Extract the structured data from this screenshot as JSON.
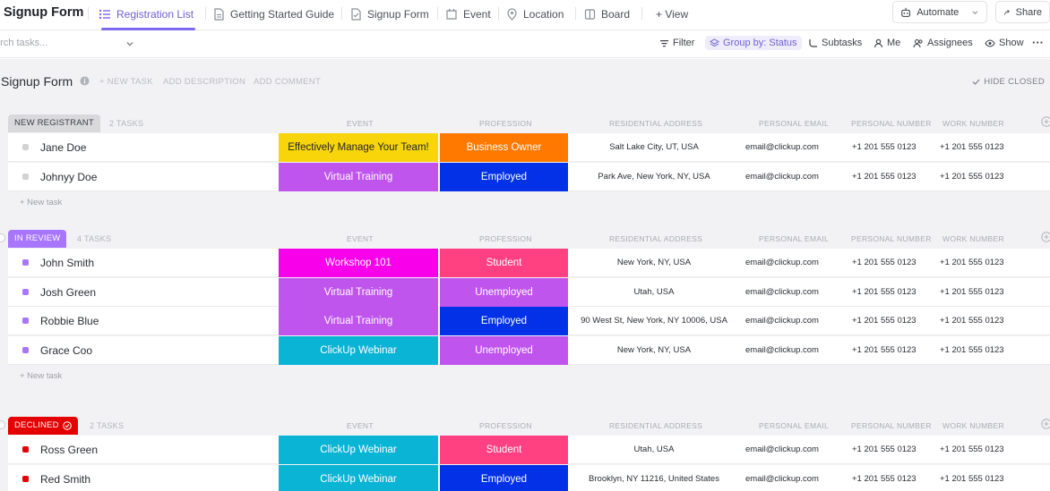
{
  "top": {
    "title": "Signup Form",
    "tabs": [
      {
        "label": "Registration List",
        "icon": "list-icon"
      },
      {
        "label": "Getting Started Guide",
        "icon": "doc-icon"
      },
      {
        "label": "Signup Form",
        "icon": "form-icon"
      },
      {
        "label": "Event",
        "icon": "event-icon"
      },
      {
        "label": "Location",
        "icon": "location-icon"
      },
      {
        "label": "Board",
        "icon": "board-icon"
      },
      {
        "label": "+ View",
        "icon": "plus-icon"
      }
    ],
    "automate": "Automate",
    "share": "Share"
  },
  "toolbar": {
    "search_placeholder": "arch tasks...",
    "filter": "Filter",
    "group_by": "Group by: Status",
    "subtasks": "Subtasks",
    "me": "Me",
    "assignees": "Assignees",
    "show": "Show"
  },
  "list": {
    "title": "Signup Form",
    "new_task": "+ NEW TASK",
    "add_description": "ADD DESCRIPTION",
    "add_comment": "ADD COMMENT",
    "hide_closed": "HIDE CLOSED",
    "add_task_label": "+ New task"
  },
  "columns": {
    "event": "EVENT",
    "profession": "PROFESSION",
    "address": "RESIDENTIAL ADDRESS",
    "email": "PERSONAL EMAIL",
    "personal_number": "PERSONAL NUMBER",
    "work_number": "WORK NUMBER"
  },
  "groups": [
    {
      "status": "NEW REGISTRANT",
      "count": "2 TASKS",
      "badge_bg": "#d9d9dc",
      "badge_fg": "#3c3f46",
      "square": "#d3d3d6",
      "tasks": [
        {
          "name": "Jane Doe",
          "event": "Effectively Manage Your Team!",
          "event_bg": "#f8d50b",
          "event_fg": "#1f2128",
          "profession": "Business Owner",
          "profession_bg": "#ff7800",
          "address": "Salt Lake City, UT, USA",
          "email": "email@clickup.com",
          "personal": "+1 201 555 0123",
          "work": "+1 201 555 0123"
        },
        {
          "name": "Johnyy Doe",
          "event": "Virtual Training",
          "event_bg": "#bf55ec",
          "event_fg": "#ffffff",
          "profession": "Employed",
          "profession_bg": "#0231e8",
          "address": "Park Ave, New York, NY, USA",
          "email": "email@clickup.com",
          "personal": "+1 201 555 0123",
          "work": "+1 201 555 0123"
        }
      ]
    },
    {
      "status": "IN REVIEW",
      "count": "4 TASKS",
      "badge_bg": "#a875ff",
      "badge_fg": "#ffffff",
      "square": "#a875ff",
      "tasks": [
        {
          "name": "John Smith",
          "event": "Workshop 101",
          "event_bg": "#f900ea",
          "event_fg": "#ffffff",
          "profession": "Student",
          "profession_bg": "#ff4081",
          "address": "New York, NY, USA",
          "email": "email@clickup.com",
          "personal": "+1 201 555 0123",
          "work": "+1 201 555 0123"
        },
        {
          "name": "Josh Green",
          "event": "Virtual Training",
          "event_bg": "#bf55ec",
          "event_fg": "#ffffff",
          "profession": "Unemployed",
          "profession_bg": "#bf55ec",
          "address": "Utah, USA",
          "email": "email@clickup.com",
          "personal": "+1 201 555 0123",
          "work": "+1 201 555 0123"
        },
        {
          "name": "Robbie Blue",
          "event": "Virtual Training",
          "event_bg": "#bf55ec",
          "event_fg": "#ffffff",
          "profession": "Employed",
          "profession_bg": "#0231e8",
          "address": "90 West St, New York, NY 10006, USA",
          "email": "email@clickup.com",
          "personal": "+1 201 555 0123",
          "work": "+1 201 555 0123"
        },
        {
          "name": "Grace Coo",
          "event": "ClickUp Webinar",
          "event_bg": "#0ab4d4",
          "event_fg": "#ffffff",
          "profession": "Unemployed",
          "profession_bg": "#bf55ec",
          "address": "New York, NY, USA",
          "email": "email@clickup.com",
          "personal": "+1 201 555 0123",
          "work": "+1 201 555 0123"
        }
      ]
    },
    {
      "status": "DECLINED",
      "count": "2 TASKS",
      "badge_bg": "#e50000",
      "badge_fg": "#ffffff",
      "square": "#e50000",
      "tasks": [
        {
          "name": "Ross Green",
          "event": "ClickUp Webinar",
          "event_bg": "#0ab4d4",
          "event_fg": "#ffffff",
          "profession": "Student",
          "profession_bg": "#ff4081",
          "address": "Utah, USA",
          "email": "email@clickup.com",
          "personal": "+1 201 555 0123",
          "work": "+1 201 555 0123"
        },
        {
          "name": "Red Smith",
          "event": "ClickUp Webinar",
          "event_bg": "#0ab4d4",
          "event_fg": "#ffffff",
          "profession": "Employed",
          "profession_bg": "#0231e8",
          "address": "Brooklyn, NY 11216, United States",
          "email": "email@clickup.com",
          "personal": "+1 201 555 0123",
          "work": "+1 201 555 0123"
        }
      ]
    }
  ]
}
